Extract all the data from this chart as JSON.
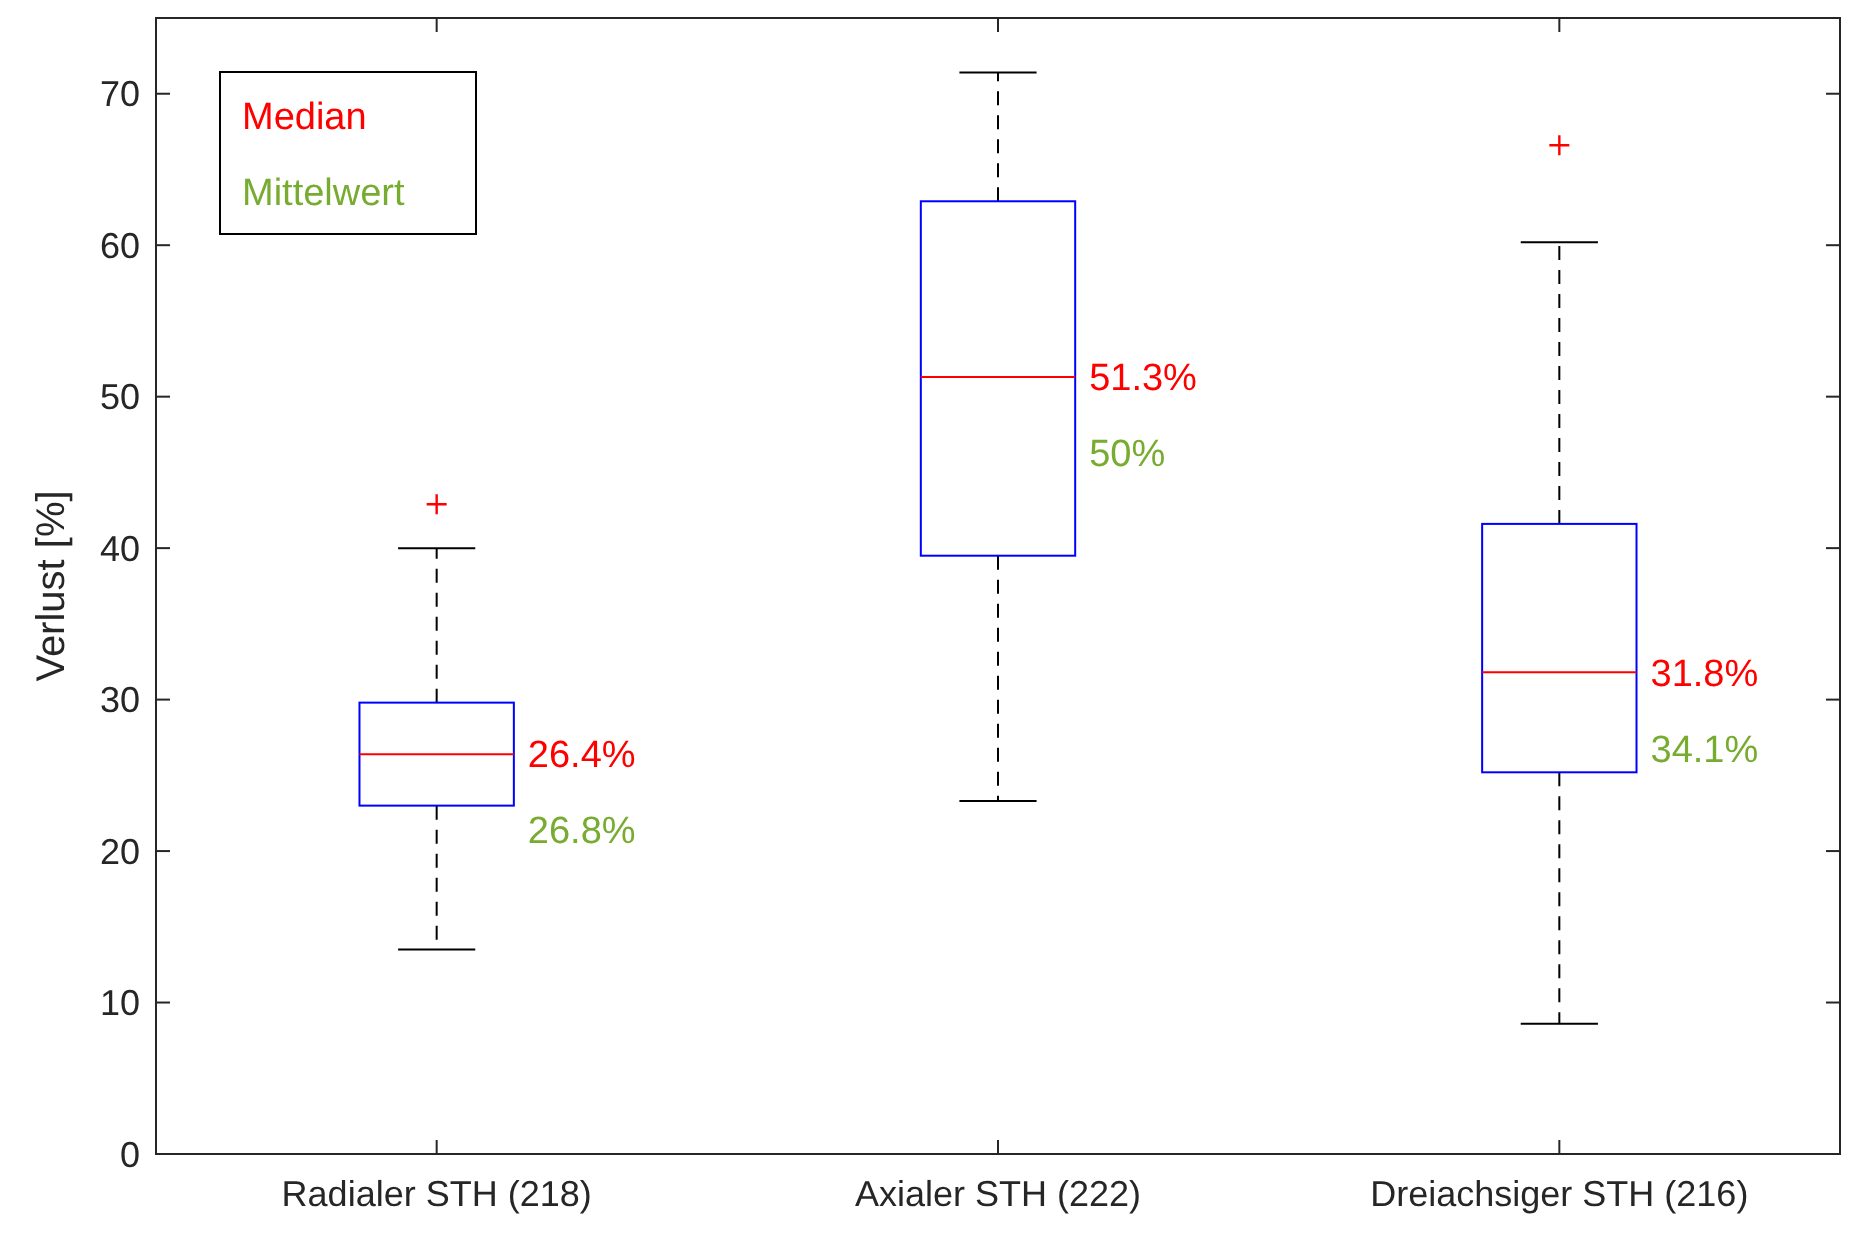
{
  "chart_data": {
    "type": "box",
    "ylabel": "Verlust [%]",
    "categories": [
      "Radialer STH (218)",
      "Axialer STH (222)",
      "Dreiachsiger STH (216)"
    ],
    "color": "#0000ff",
    "boxes": [
      {
        "low": 13.5,
        "q1": 23.0,
        "median": 26.4,
        "q3": 29.8,
        "high": 40.0,
        "outliers": [
          42.9
        ]
      },
      {
        "low": 23.3,
        "q1": 39.5,
        "median": 51.3,
        "q3": 62.9,
        "high": 71.4
      },
      {
        "low": 8.6,
        "q1": 25.2,
        "median": 31.8,
        "q3": 41.6,
        "high": 60.2,
        "outliers": [
          66.6
        ]
      }
    ],
    "annotations": [
      "Median",
      "Mittelwert",
      {
        "text": "26.4%",
        "x": "Radialer STH (218)",
        "y": 26.4
      },
      {
        "text": "51.3%",
        "x": "Axialer STH (222)",
        "y": 51.3
      },
      {
        "text": "31.8%",
        "x": "Dreiachsiger STH (216)",
        "y": 31.8
      },
      "26.8%",
      "50%",
      "34.1%"
    ],
    "ylim": [
      0,
      75
    ],
    "yticks": [
      0,
      10,
      20,
      30,
      40,
      50,
      60,
      70
    ]
  }
}
